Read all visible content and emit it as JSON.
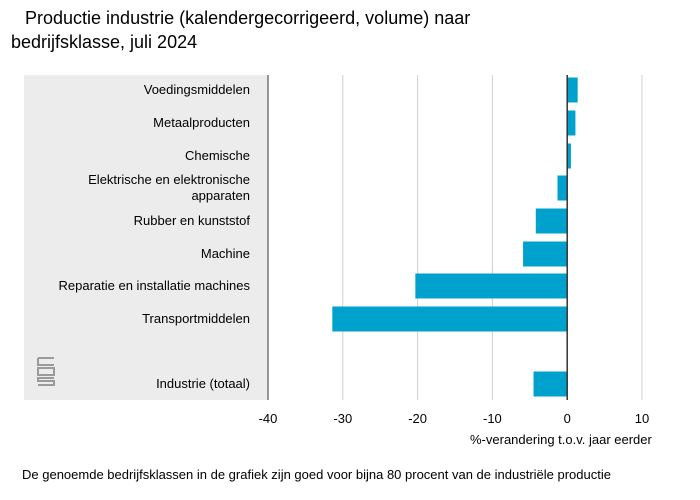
{
  "title_line1": "Productie industrie (kalendergecorrigeerd, volume) naar",
  "title_line2": "bedrijfsklasse, juli 2024",
  "footnote": "De genoemde bedrijfsklassen in de grafiek zijn goed voor bijna 80 procent van de industriële productie",
  "colors": {
    "bar": "#00a1cd",
    "panel": "#ececec",
    "grid": "#d0d0d0",
    "zero_line": "#333333"
  },
  "chart_data": {
    "type": "bar",
    "orientation": "horizontal",
    "categories": [
      "Voedingsmiddelen",
      "Metaalproducten",
      "Chemische",
      "Elektrische en elektronische apparaten",
      "Rubber en kunststof",
      "Machine",
      "Reparatie en installatie machines",
      "Transportmiddelen",
      "Industrie (totaal)"
    ],
    "category_lines": [
      [
        "Voedingsmiddelen"
      ],
      [
        "Metaalproducten"
      ],
      [
        "Chemische"
      ],
      [
        "Elektrische en elektronische",
        "apparaten"
      ],
      [
        "Rubber en kunststof"
      ],
      [
        "Machine"
      ],
      [
        "Reparatie en installatie machines"
      ],
      [
        "Transportmiddelen"
      ],
      [
        "Industrie (totaal)"
      ]
    ],
    "values": [
      1.4,
      1.1,
      0.5,
      -1.3,
      -4.2,
      -5.9,
      -20.3,
      -31.4,
      -4.5
    ],
    "xlabel": "%-verandering t.o.v. jaar eerder",
    "xlim": [
      -40,
      10
    ],
    "xticks": [
      -40,
      -30,
      -20,
      -10,
      0,
      10
    ],
    "grid": true
  }
}
